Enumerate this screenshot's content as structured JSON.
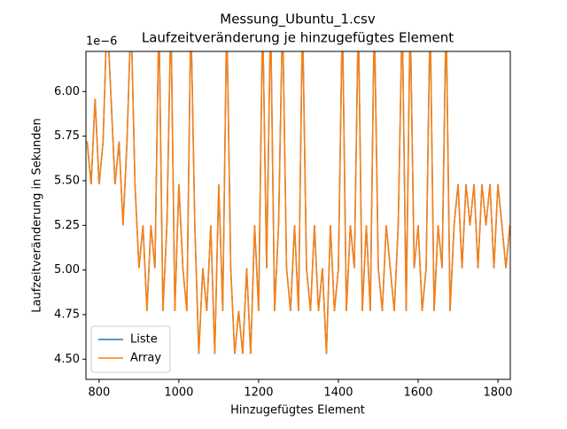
{
  "chart_data": {
    "type": "line",
    "title": "Messung_Ubuntu_1.csv",
    "subtitle": "Laufzeitveränderung je hinzugefügtes Element",
    "x_label": "Hinzugefügtes Element",
    "y_label": "Laufzeitveränderung in Sekunden",
    "y_offset_label": "1e−6",
    "xlim": [
      767,
      1831
    ],
    "ylim": [
      4.387,
      6.225
    ],
    "xticks": [
      800,
      1000,
      1200,
      1400,
      1600,
      1800
    ],
    "yticks": [
      {
        "value": 4.5,
        "label": "4.50"
      },
      {
        "value": 4.75,
        "label": "4.75"
      },
      {
        "value": 5.0,
        "label": "5.00"
      },
      {
        "value": 5.25,
        "label": "5.25"
      },
      {
        "value": 5.5,
        "label": "5.50"
      },
      {
        "value": 5.75,
        "label": "5.75"
      },
      {
        "value": 6.0,
        "label": "6.00"
      }
    ],
    "legend": "lower left",
    "x": [
      770,
      780,
      790,
      800,
      810,
      820,
      830,
      840,
      850,
      860,
      870,
      880,
      890,
      900,
      910,
      920,
      930,
      940,
      950,
      960,
      970,
      980,
      990,
      1000,
      1010,
      1020,
      1030,
      1040,
      1050,
      1060,
      1070,
      1080,
      1090,
      1100,
      1110,
      1120,
      1130,
      1140,
      1150,
      1160,
      1170,
      1180,
      1190,
      1200,
      1210,
      1220,
      1230,
      1240,
      1250,
      1260,
      1270,
      1280,
      1290,
      1300,
      1310,
      1320,
      1330,
      1340,
      1350,
      1360,
      1370,
      1380,
      1390,
      1400,
      1410,
      1420,
      1430,
      1440,
      1450,
      1460,
      1470,
      1480,
      1490,
      1500,
      1510,
      1520,
      1530,
      1540,
      1550,
      1560,
      1570,
      1580,
      1590,
      1600,
      1610,
      1620,
      1630,
      1640,
      1650,
      1660,
      1670,
      1680,
      1690,
      1700,
      1710,
      1720,
      1730,
      1740,
      1750,
      1760,
      1770,
      1780,
      1790,
      1800,
      1810,
      1820,
      1830
    ],
    "series": [
      {
        "name": "Liste",
        "color": "#1f77b4",
        "values": [
          5.72,
          5.48,
          5.96,
          5.48,
          5.72,
          6.44,
          5.96,
          5.48,
          5.72,
          5.25,
          5.72,
          6.44,
          5.48,
          5.01,
          5.25,
          4.77,
          5.25,
          5.01,
          6.44,
          4.77,
          5.25,
          6.44,
          4.77,
          5.48,
          5.01,
          4.77,
          6.44,
          5.25,
          4.53,
          5.01,
          4.77,
          5.25,
          4.53,
          5.48,
          4.77,
          6.44,
          5.01,
          4.53,
          4.77,
          4.53,
          5.01,
          4.53,
          5.25,
          4.77,
          6.44,
          5.01,
          6.44,
          4.77,
          5.25,
          6.44,
          5.01,
          4.77,
          5.25,
          4.77,
          6.44,
          5.01,
          4.77,
          5.25,
          4.77,
          5.01,
          4.53,
          5.25,
          4.77,
          5.01,
          6.44,
          4.77,
          5.25,
          5.01,
          6.44,
          4.77,
          5.25,
          4.77,
          6.44,
          5.01,
          4.77,
          5.25,
          5.01,
          4.77,
          5.25,
          6.44,
          4.77,
          6.44,
          5.01,
          5.25,
          4.77,
          5.01,
          6.44,
          4.77,
          5.25,
          5.01,
          6.44,
          4.77,
          5.25,
          5.48,
          5.01,
          5.48,
          5.25,
          5.48,
          5.01,
          5.48,
          5.25,
          5.48,
          5.01,
          5.48,
          5.25,
          5.01,
          5.25
        ]
      },
      {
        "name": "Array",
        "color": "#ff7f0e",
        "values": [
          5.72,
          5.48,
          5.96,
          5.48,
          5.72,
          6.44,
          5.96,
          5.48,
          5.72,
          5.25,
          5.72,
          6.44,
          5.48,
          5.01,
          5.25,
          4.77,
          5.25,
          5.01,
          6.44,
          4.77,
          5.25,
          6.44,
          4.77,
          5.48,
          5.01,
          4.77,
          6.44,
          5.25,
          4.53,
          5.01,
          4.77,
          5.25,
          4.53,
          5.48,
          4.77,
          6.44,
          5.01,
          4.53,
          4.77,
          4.53,
          5.01,
          4.53,
          5.25,
          4.77,
          6.44,
          5.01,
          6.44,
          4.77,
          5.25,
          6.44,
          5.01,
          4.77,
          5.25,
          4.77,
          6.44,
          5.01,
          4.77,
          5.25,
          4.77,
          5.01,
          4.53,
          5.25,
          4.77,
          5.01,
          6.44,
          4.77,
          5.25,
          5.01,
          6.44,
          4.77,
          5.25,
          4.77,
          6.44,
          5.01,
          4.77,
          5.25,
          5.01,
          4.77,
          5.25,
          6.44,
          4.77,
          6.44,
          5.01,
          5.25,
          4.77,
          5.01,
          6.44,
          4.77,
          5.25,
          5.01,
          6.44,
          4.77,
          5.25,
          5.48,
          5.01,
          5.48,
          5.25,
          5.48,
          5.01,
          5.48,
          5.25,
          5.48,
          5.01,
          5.48,
          5.25,
          5.01,
          5.25
        ]
      }
    ]
  }
}
